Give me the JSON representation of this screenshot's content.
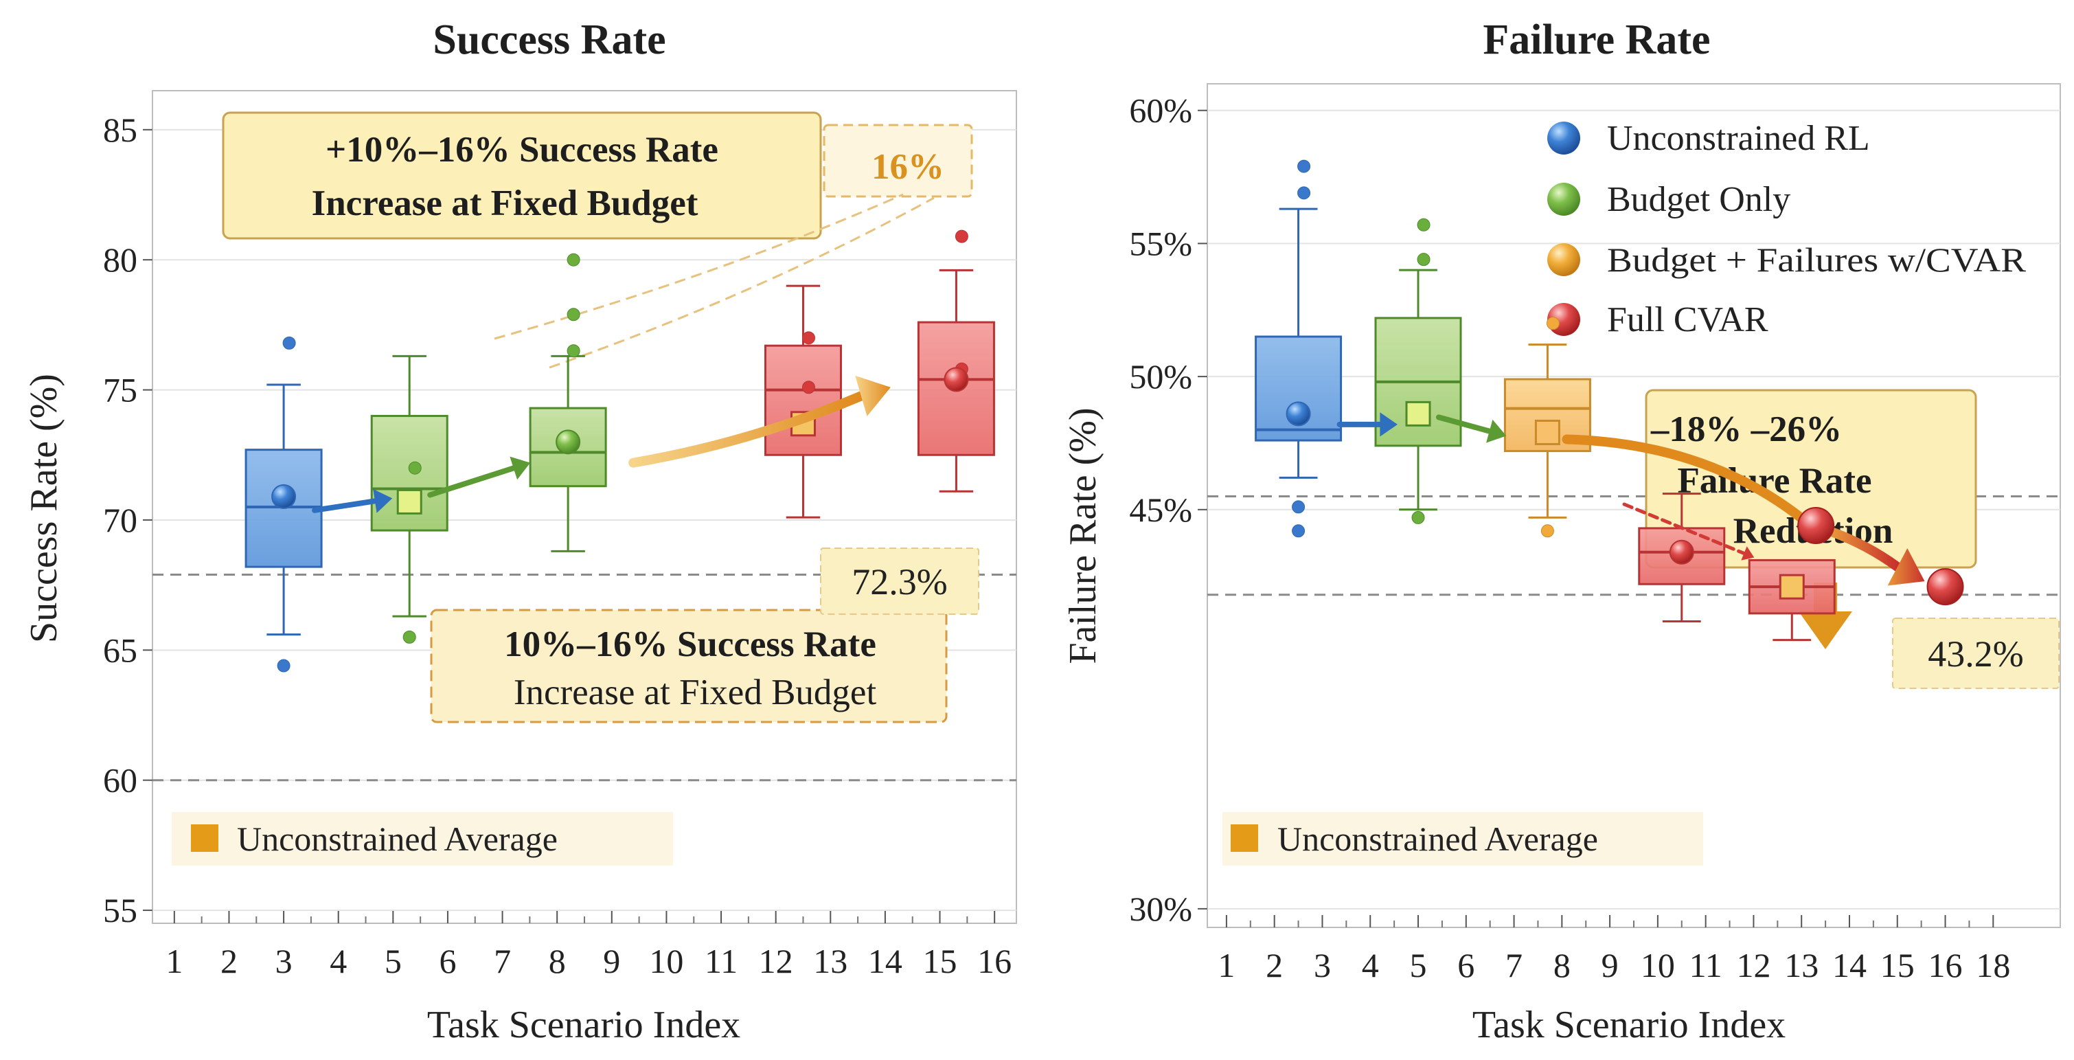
{
  "chart_data": [
    {
      "type": "box",
      "title": "Success Rate",
      "xlabel": "Task Scenario Index",
      "ylabel": "Success Rate (%)",
      "yticks": [
        "55",
        "60",
        "65",
        "70",
        "75",
        "80",
        "85"
      ],
      "ylim": [
        54.5,
        86.5
      ],
      "xticks": [
        "1",
        "2",
        "3",
        "4",
        "5",
        "6",
        "7",
        "8",
        "9",
        "10",
        "11",
        "12",
        "13",
        "14",
        "15",
        "16"
      ],
      "xlim": [
        0.6,
        16.4
      ],
      "boxes": [
        {
          "series": "Unconstrained RL",
          "x": 3.0,
          "min": 65.6,
          "q1": 68.2,
          "median": 70.5,
          "q3": 72.7,
          "max": 75.2,
          "mean": 70.9,
          "outliers": [
            76.8,
            64.4
          ],
          "marker": "circle"
        },
        {
          "series": "Budget Only",
          "x": 5.3,
          "min": 66.3,
          "q1": 69.6,
          "median": 71.2,
          "q3": 74.0,
          "max": 76.3,
          "mean": 70.7,
          "outliers": [
            65.5,
            72.0
          ],
          "marker": "square"
        },
        {
          "series": "Budget Only",
          "x": 8.2,
          "min": 68.8,
          "q1": 71.3,
          "median": 72.6,
          "q3": 74.3,
          "max": 76.3,
          "mean": 73.0,
          "outliers": [
            80.0,
            77.9,
            76.5
          ],
          "marker": "circle"
        },
        {
          "series": "Full CVAR",
          "x": 12.5,
          "min": 70.1,
          "q1": 72.5,
          "median": 75.0,
          "q3": 76.7,
          "max": 79.0,
          "mean": 73.7,
          "outliers": [
            77.0,
            75.1
          ],
          "marker": "square"
        },
        {
          "series": "Full CVAR",
          "x": 15.3,
          "min": 71.1,
          "q1": 72.5,
          "median": 75.4,
          "q3": 77.6,
          "max": 79.6,
          "mean": 75.4,
          "outliers": [
            80.9,
            75.8
          ],
          "marker": "circle"
        }
      ],
      "callouts": {
        "top_lines": [
          "+10%–16% Success Rate",
          "Increase at Fixed Budget"
        ],
        "top_value": "16%",
        "bottom_lines": [
          "10%–16% Success Rate",
          "Increase at Fixed Budget"
        ],
        "value_label": "72.3%"
      },
      "reference_lines": [
        67.9,
        60.0
      ],
      "inline_legend": "Unconstrained Average"
    },
    {
      "type": "box",
      "title": "Failure Rate",
      "xlabel": "Task Scenario Index",
      "ylabel": "Failure Rate (%)",
      "yticks": [
        "30%",
        "45%",
        "50%",
        "55%",
        "60%"
      ],
      "ylim": [
        29.3,
        61
      ],
      "xticks": [
        "1",
        "2",
        "3",
        "4",
        "5",
        "6",
        "7",
        "8",
        "9",
        "10",
        "11",
        "12",
        "13",
        "14",
        "15",
        "16",
        "18"
      ],
      "xlim": [
        0.6,
        18.4
      ],
      "legend": [
        {
          "label": "Unconstrained RL",
          "color": "#3f7fd0"
        },
        {
          "label": "Budget Only",
          "color": "#7fbf4a"
        },
        {
          "label": "Budget + Failures w/CVAR",
          "color": "#f2ae3a"
        },
        {
          "label": "Full CVAR",
          "color": "#e04a4a"
        }
      ],
      "boxes": [
        {
          "series": "Unconstrained RL",
          "x": 2.5,
          "min": 46.2,
          "q1": 47.6,
          "median": 48.0,
          "q3": 51.5,
          "max": 56.3,
          "mean": 48.6,
          "outliers": [
            57.9,
            56.9,
            45.1,
            44.2
          ],
          "marker": "circle"
        },
        {
          "series": "Budget Only",
          "x": 5.0,
          "min": 45.0,
          "q1": 47.4,
          "median": 49.8,
          "q3": 52.2,
          "max": 54.0,
          "mean": 48.6,
          "outliers": [
            55.7,
            54.4,
            44.7
          ],
          "marker": "square"
        },
        {
          "series": "Budget + Failures w/CVAR",
          "x": 7.7,
          "min": 44.7,
          "q1": 47.2,
          "median": 48.8,
          "q3": 49.9,
          "max": 51.2,
          "mean": 47.9,
          "outliers": [
            52.0,
            44.2
          ],
          "marker": "square"
        },
        {
          "series": "Full CVAR",
          "x": 10.5,
          "min": 40.8,
          "q1": 42.2,
          "median": 43.4,
          "q3": 44.3,
          "max": 45.6,
          "mean": 43.4,
          "outliers": [],
          "marker": "circle"
        },
        {
          "series": "Full CVAR",
          "x": 12.8,
          "min": 40.1,
          "q1": 41.1,
          "median": 42.1,
          "q3": 43.1,
          "max": null,
          "mean": 42.1,
          "outliers": [],
          "marker": "square"
        }
      ],
      "trend_points": [
        {
          "x": 13.3,
          "y": 44.4
        },
        {
          "x": 16.0,
          "y": 42.1
        }
      ],
      "callouts": {
        "lines": [
          "–18% –26%",
          "Failure Rate",
          "Reduction"
        ],
        "value_label": "43.2%"
      },
      "reference_lines": [
        45.5,
        41.8
      ],
      "inline_legend": "Unconstrained Average"
    }
  ]
}
